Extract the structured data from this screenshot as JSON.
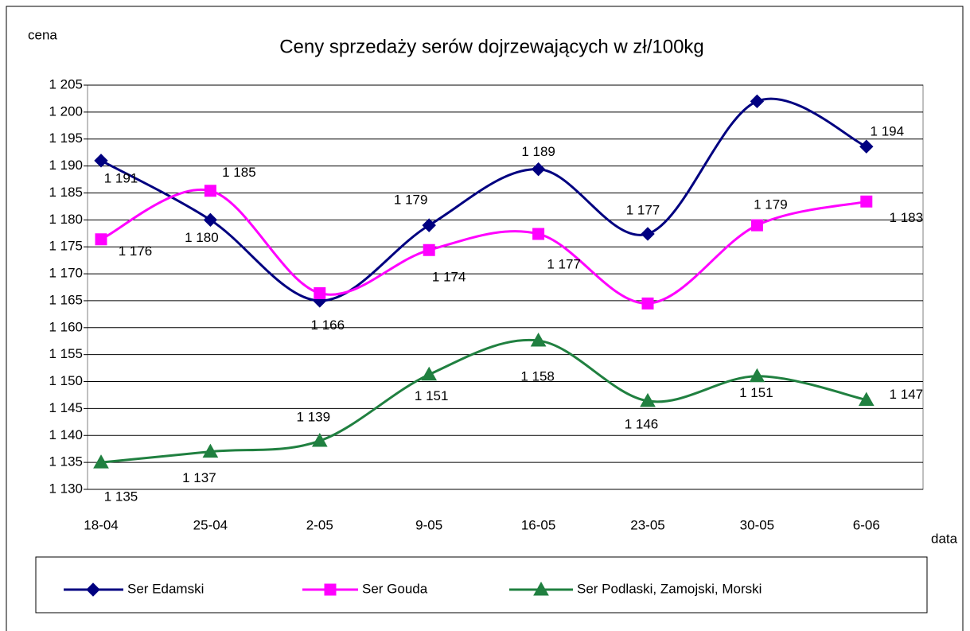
{
  "chart_data": {
    "type": "line",
    "title": "Ceny sprzedaży serów dojrzewających w zł/100kg",
    "y_label": "cena",
    "x_label": "data",
    "categories": [
      "18-04",
      "25-04",
      "2-05",
      "9-05",
      "16-05",
      "23-05",
      "30-05",
      "6-06"
    ],
    "ylim": [
      1130,
      1205
    ],
    "yticks": [
      {
        "value": 1130,
        "label": "1 130"
      },
      {
        "value": 1135,
        "label": "1 135"
      },
      {
        "value": 1140,
        "label": "1 140"
      },
      {
        "value": 1145,
        "label": "1 145"
      },
      {
        "value": 1150,
        "label": "1 150"
      },
      {
        "value": 1155,
        "label": "1 155"
      },
      {
        "value": 1160,
        "label": "1 160"
      },
      {
        "value": 1165,
        "label": "1 165"
      },
      {
        "value": 1170,
        "label": "1 170"
      },
      {
        "value": 1175,
        "label": "1 175"
      },
      {
        "value": 1180,
        "label": "1 180"
      },
      {
        "value": 1185,
        "label": "1 185"
      },
      {
        "value": 1190,
        "label": "1 190"
      },
      {
        "value": 1195,
        "label": "1 195"
      },
      {
        "value": 1200,
        "label": "1 200"
      },
      {
        "value": 1205,
        "label": "1 205"
      }
    ],
    "grid": true,
    "legend": "bottom",
    "series": [
      {
        "name": "Ser Edamski",
        "color": "#000080",
        "marker": "diamond",
        "values": [
          1191,
          1180,
          1165,
          1179,
          1189.4,
          1177.4,
          1202,
          1193.6
        ],
        "value_labels": [
          "1 191",
          "1 180",
          null,
          "1 179",
          "1 189",
          "1 177",
          null,
          "1 194"
        ]
      },
      {
        "name": "Ser Gouda",
        "color": "#ff00ff",
        "marker": "square",
        "values": [
          1176.4,
          1185.4,
          1166.4,
          1174.4,
          1177.4,
          1164.5,
          1179,
          1183.4
        ],
        "value_labels": [
          "1 176",
          "1 185",
          "1 166",
          "1 174",
          "1 177",
          null,
          "1 179",
          "1 183"
        ]
      },
      {
        "name": "Ser Podlaski, Zamojski, Morski",
        "color": "#208040",
        "marker": "triangle",
        "values": [
          1135,
          1137,
          1139,
          1151.3,
          1157.6,
          1146.4,
          1151,
          1146.6
        ],
        "value_labels": [
          "1 135",
          "1 137",
          "1 139",
          "1 151",
          "1 158",
          "1 146",
          "1 151",
          "1 147"
        ]
      }
    ]
  }
}
